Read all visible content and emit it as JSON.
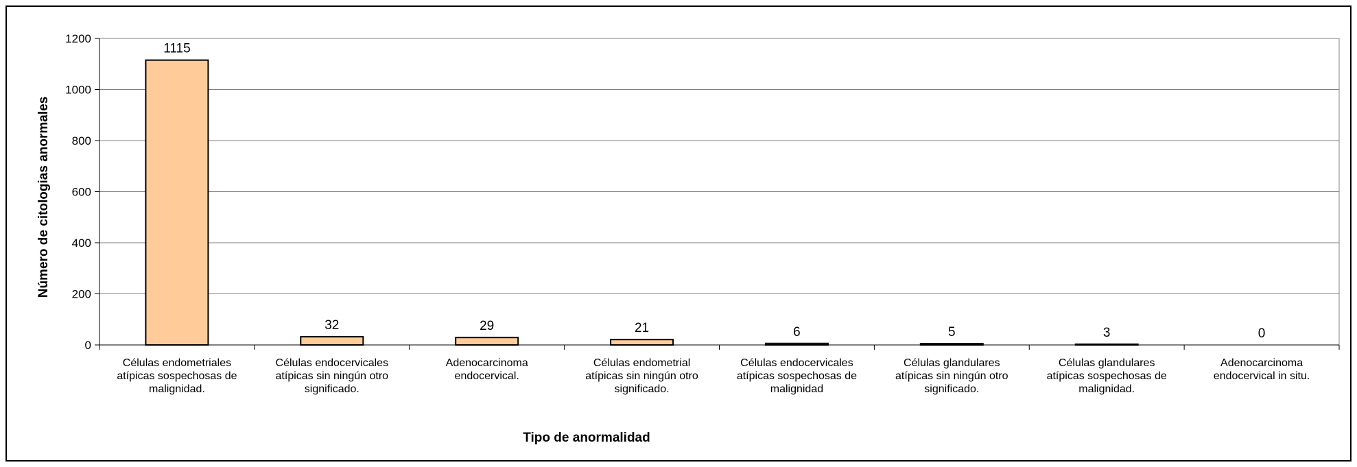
{
  "chart_data": {
    "type": "bar",
    "title": "",
    "xlabel": "Tipo de anormalidad",
    "ylabel": "Número de citologias anormales",
    "ylim": [
      0,
      1200
    ],
    "yticks": [
      0,
      200,
      400,
      600,
      800,
      1000,
      1200
    ],
    "grid": true,
    "legend": "none",
    "bar_color": "#FFCC99",
    "categories": [
      [
        "Células endometriales",
        "atípicas sospechosas de",
        "malignidad."
      ],
      [
        "Células endocervicales",
        "atípicas sin ningún otro",
        "significado."
      ],
      [
        "Adenocarcinoma",
        "endocervical."
      ],
      [
        "Células endometrial",
        "atípicas sin ningún otro",
        "significado."
      ],
      [
        "Células endocervicales",
        "atípicas sospechosas de",
        "malignidad"
      ],
      [
        "Células glandulares",
        "atípicas sin ningún otro",
        "significado."
      ],
      [
        "Células glandulares",
        "atípicas sospechosas de",
        "malignidad."
      ],
      [
        "Adenocarcinoma",
        "endocervical in situ."
      ]
    ],
    "values": [
      1115,
      32,
      29,
      21,
      6,
      5,
      3,
      0
    ]
  }
}
